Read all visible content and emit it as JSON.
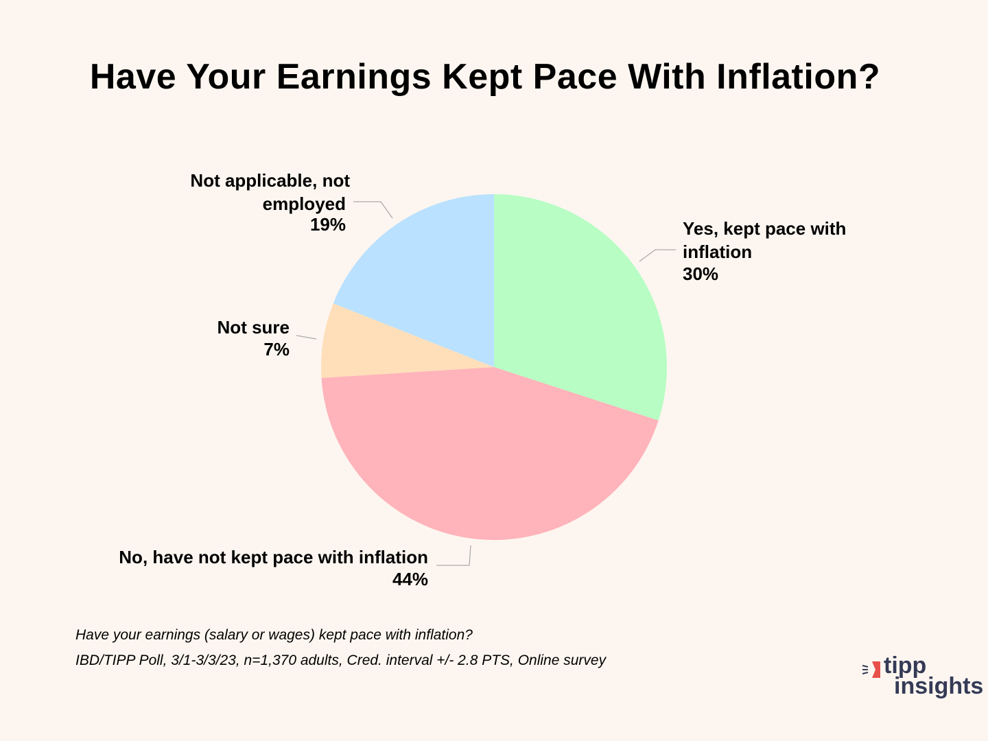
{
  "chart_data": {
    "type": "pie",
    "title": "Have Your Earnings Kept Pace With Inflation?",
    "start_angle": "12 o'clock",
    "direction": "clockwise",
    "slices": [
      {
        "label": "Yes, kept pace with inflation",
        "label_lines": [
          "Yes, kept pace with",
          "inflation"
        ],
        "value": 30,
        "value_label": "30%",
        "color": "#b8fdc4"
      },
      {
        "label": "No, have not kept pace with inflation",
        "label_lines": [
          "No, have not kept pace with inflation"
        ],
        "value": 44,
        "value_label": "44%",
        "color": "#ffb3ba"
      },
      {
        "label": "Not sure",
        "label_lines": [
          "Not sure"
        ],
        "value": 7,
        "value_label": "7%",
        "color": "#ffdfba"
      },
      {
        "label": "Not applicable, not employed",
        "label_lines": [
          "Not applicable, not",
          "employed"
        ],
        "value": 19,
        "value_label": "19%",
        "color": "#bae1ff"
      }
    ]
  },
  "footnote": {
    "question": "Have your earnings (salary or wages) kept pace with inflation?",
    "source": "IBD/TIPP Poll, 3/1-3/3/23, n=1,370 adults, Cred. interval +/- 2.8 PTS, Online survey"
  },
  "logo": {
    "line1": "tipp",
    "line2": "insights",
    "text_color": "#353b56",
    "accent_color": "#e8504a"
  }
}
